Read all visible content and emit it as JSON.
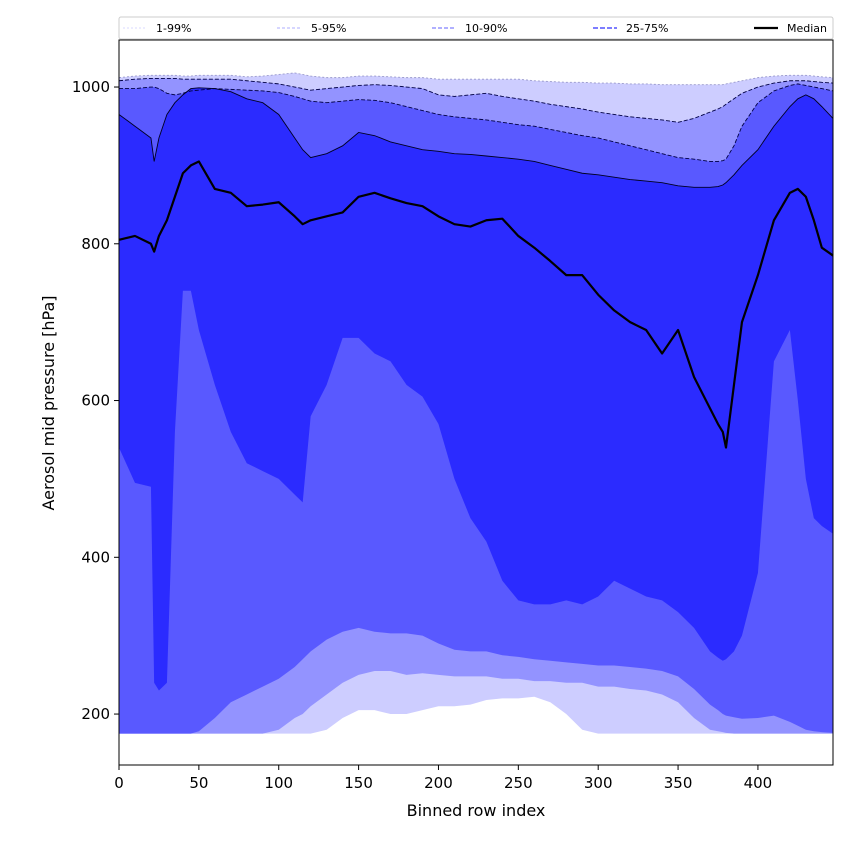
{
  "chart_data": {
    "type": "area",
    "xlabel": "Binned row index",
    "ylabel": "Aerosol mid pressure [hPa]",
    "xlim": [
      0,
      447
    ],
    "ylim": [
      135,
      1060
    ],
    "xticks": [
      0,
      50,
      100,
      150,
      200,
      250,
      300,
      350,
      400
    ],
    "yticks": [
      200,
      400,
      600,
      800,
      1000
    ],
    "grid": false,
    "legend_position": "top",
    "colors": {
      "band_1_99": "#cdcdff",
      "band_5_95": "#9393ff",
      "band_10_90": "#5959ff",
      "band_25_75": "#2b2bff",
      "median": "#000000"
    },
    "legend": [
      "1-99%",
      "5-95%",
      "10-90%",
      "25-75%",
      "Median"
    ],
    "x": [
      0,
      10,
      20,
      22,
      25,
      30,
      35,
      40,
      45,
      50,
      60,
      70,
      80,
      90,
      100,
      110,
      115,
      120,
      130,
      140,
      150,
      160,
      170,
      180,
      190,
      200,
      210,
      220,
      230,
      240,
      250,
      260,
      270,
      280,
      290,
      300,
      310,
      320,
      330,
      340,
      350,
      360,
      370,
      375,
      378,
      380,
      385,
      390,
      400,
      410,
      420,
      425,
      430,
      435,
      440,
      447
    ],
    "series": [
      {
        "name": "1-99%",
        "lower": [
          175,
          175,
          175,
          175,
          175,
          175,
          175,
          175,
          175,
          175,
          175,
          175,
          175,
          175,
          175,
          175,
          175,
          175,
          180,
          195,
          205,
          205,
          200,
          200,
          205,
          210,
          210,
          212,
          218,
          220,
          220,
          222,
          215,
          200,
          180,
          175,
          175,
          175,
          175,
          175,
          175,
          175,
          175,
          175,
          175,
          175,
          175,
          175,
          175,
          175,
          175,
          175,
          175,
          175,
          175,
          175
        ],
        "upper": [
          1012,
          1014,
          1015,
          1015,
          1015,
          1015,
          1015,
          1014,
          1014,
          1015,
          1015,
          1015,
          1013,
          1014,
          1016,
          1018,
          1016,
          1014,
          1012,
          1012,
          1014,
          1014,
          1013,
          1012,
          1012,
          1010,
          1010,
          1010,
          1010,
          1010,
          1010,
          1008,
          1007,
          1006,
          1006,
          1005,
          1005,
          1004,
          1004,
          1003,
          1003,
          1003,
          1003,
          1003,
          1003,
          1004,
          1006,
          1008,
          1012,
          1014,
          1015,
          1015,
          1015,
          1014,
          1013,
          1012
        ]
      },
      {
        "name": "5-95%",
        "lower": [
          175,
          175,
          175,
          175,
          175,
          175,
          175,
          175,
          175,
          175,
          175,
          175,
          175,
          175,
          180,
          195,
          200,
          210,
          225,
          240,
          250,
          255,
          255,
          250,
          252,
          250,
          248,
          248,
          248,
          245,
          245,
          242,
          242,
          240,
          240,
          235,
          235,
          232,
          230,
          225,
          215,
          195,
          180,
          178,
          177,
          176,
          175,
          175,
          175,
          175,
          175,
          175,
          175,
          175,
          175,
          175
        ],
        "upper": [
          1008,
          1010,
          1011,
          1011,
          1011,
          1011,
          1011,
          1010,
          1010,
          1010,
          1010,
          1010,
          1008,
          1006,
          1004,
          1000,
          998,
          996,
          998,
          1000,
          1002,
          1003,
          1002,
          1000,
          998,
          990,
          988,
          990,
          992,
          988,
          985,
          982,
          978,
          975,
          972,
          968,
          965,
          962,
          960,
          958,
          955,
          960,
          968,
          972,
          975,
          978,
          985,
          992,
          1000,
          1005,
          1008,
          1008,
          1008,
          1007,
          1006,
          1005
        ]
      },
      {
        "name": "10-90%",
        "lower": [
          175,
          175,
          175,
          175,
          175,
          175,
          175,
          175,
          175,
          178,
          195,
          215,
          225,
          235,
          245,
          260,
          270,
          280,
          295,
          305,
          310,
          305,
          303,
          303,
          300,
          290,
          282,
          280,
          280,
          275,
          273,
          270,
          268,
          266,
          264,
          262,
          262,
          260,
          258,
          255,
          248,
          232,
          212,
          205,
          200,
          198,
          196,
          194,
          195,
          198,
          190,
          185,
          180,
          178,
          177,
          176
        ],
        "upper": [
          998,
          998,
          1000,
          1000,
          998,
          992,
          990,
          992,
          995,
          996,
          998,
          997,
          996,
          995,
          993,
          988,
          985,
          982,
          980,
          982,
          984,
          983,
          980,
          975,
          970,
          965,
          962,
          960,
          958,
          955,
          952,
          950,
          946,
          942,
          938,
          935,
          930,
          925,
          920,
          915,
          910,
          908,
          905,
          905,
          906,
          908,
          925,
          950,
          980,
          995,
          1002,
          1004,
          1002,
          1000,
          998,
          995
        ]
      },
      {
        "name": "25-75%",
        "lower": [
          540,
          495,
          490,
          240,
          230,
          240,
          560,
          740,
          740,
          690,
          620,
          560,
          520,
          510,
          500,
          480,
          470,
          580,
          620,
          680,
          680,
          660,
          650,
          620,
          605,
          570,
          500,
          450,
          420,
          370,
          345,
          340,
          340,
          345,
          340,
          350,
          370,
          360,
          350,
          345,
          330,
          310,
          280,
          272,
          268,
          270,
          280,
          300,
          380,
          650,
          690,
          600,
          500,
          450,
          440,
          430
        ],
        "upper": [
          965,
          950,
          935,
          905,
          935,
          965,
          980,
          990,
          998,
          999,
          998,
          994,
          985,
          980,
          965,
          935,
          920,
          910,
          915,
          925,
          942,
          938,
          930,
          925,
          920,
          918,
          915,
          914,
          912,
          910,
          908,
          905,
          900,
          895,
          890,
          888,
          885,
          882,
          880,
          878,
          874,
          872,
          872,
          873,
          875,
          878,
          888,
          900,
          920,
          950,
          975,
          985,
          990,
          985,
          975,
          960
        ]
      },
      {
        "name": "Median",
        "values": [
          805,
          810,
          800,
          790,
          810,
          830,
          860,
          890,
          900,
          905,
          870,
          865,
          848,
          850,
          853,
          835,
          825,
          830,
          835,
          840,
          860,
          865,
          858,
          852,
          848,
          835,
          825,
          822,
          830,
          832,
          810,
          795,
          778,
          760,
          760,
          735,
          715,
          700,
          690,
          660,
          690,
          630,
          590,
          570,
          560,
          540,
          620,
          700,
          760,
          830,
          865,
          870,
          860,
          830,
          795,
          785
        ]
      }
    ]
  }
}
